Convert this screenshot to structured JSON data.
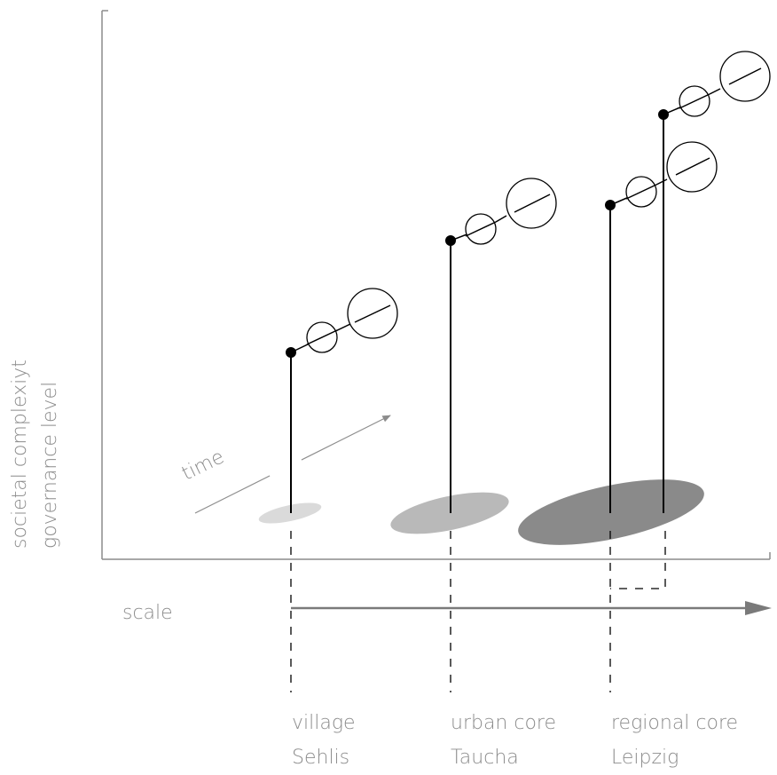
{
  "axis_labels": {
    "y_line1": "societal complexiyt",
    "y_line2": "governance level",
    "x": "scale",
    "time": "time"
  },
  "places": [
    {
      "type": "village",
      "name": "Sehlis"
    },
    {
      "type": "urban core",
      "name": "Taucha"
    },
    {
      "type": "regional core",
      "name": "Leipzig"
    }
  ],
  "colors": {
    "axis": "#8c8c8c",
    "village_area": "#dadada",
    "urban_area": "#b9b9b9",
    "regional_area": "#8a8a8a",
    "stem": "#000000"
  }
}
